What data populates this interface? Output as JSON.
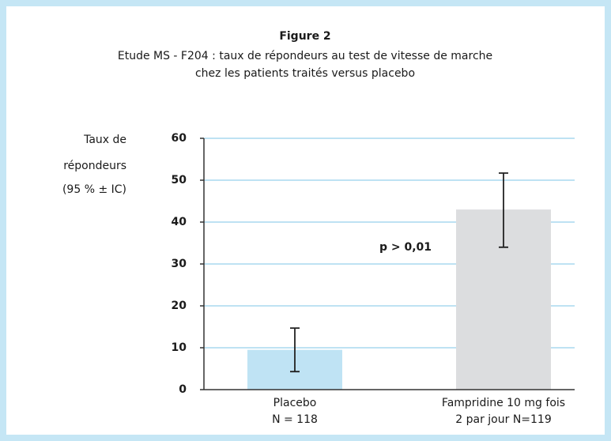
{
  "chart_data": {
    "type": "bar",
    "title": "Figure 2",
    "subtitle": [
      "Etude MS - F204 : taux de répondeurs au test de vitesse de marche",
      "chez les patients traités versus placebo"
    ],
    "y_label": [
      "Taux de",
      "répondeurs",
      "(95 % ± IC)"
    ],
    "categories": [
      [
        "Placebo",
        "N = 118"
      ],
      [
        "Fampridine 10 mg fois",
        "2 par jour N=119"
      ]
    ],
    "values": [
      9.5,
      43
    ],
    "ci_low": [
      4.3,
      34
    ],
    "ci_high": [
      14.7,
      51.7
    ],
    "colors": [
      "#bfe3f4",
      "#dcdddf"
    ],
    "annotation": "p > 0,01",
    "ylim": [
      0,
      60
    ],
    "yticks": [
      0,
      10,
      20,
      30,
      40,
      50,
      60
    ],
    "grid": true
  }
}
